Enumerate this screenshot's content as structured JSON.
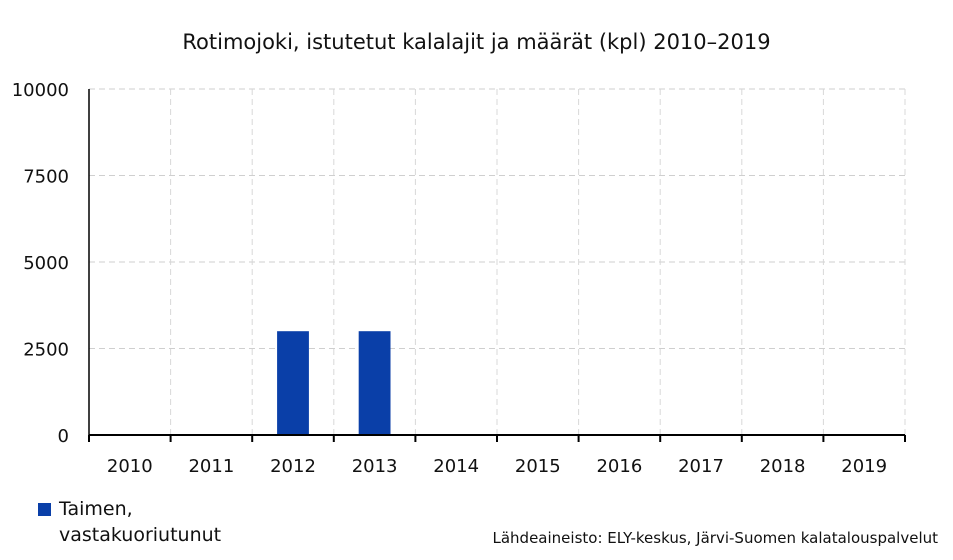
{
  "chart_data": {
    "type": "bar",
    "title": "Rotimojoki, istutetut kalalajit ja määrät (kpl) 2010–2019",
    "categories": [
      "2010",
      "2011",
      "2012",
      "2013",
      "2014",
      "2015",
      "2016",
      "2017",
      "2018",
      "2019"
    ],
    "series": [
      {
        "name": "Taimen, vastakuoriutunut",
        "values": [
          0,
          0,
          3000,
          3000,
          0,
          0,
          0,
          0,
          0,
          0
        ],
        "color": "#0a3fa8"
      }
    ],
    "ylim": [
      0,
      10000
    ],
    "yticks": [
      "0",
      "2500",
      "5000",
      "7500",
      "10000"
    ],
    "grid": true,
    "legend_position": "bottom-left",
    "xlabel": "",
    "ylabel": ""
  },
  "source": "Lähdeaineisto: ELY-keskus, Järvi-Suomen kalatalouspalvelut"
}
